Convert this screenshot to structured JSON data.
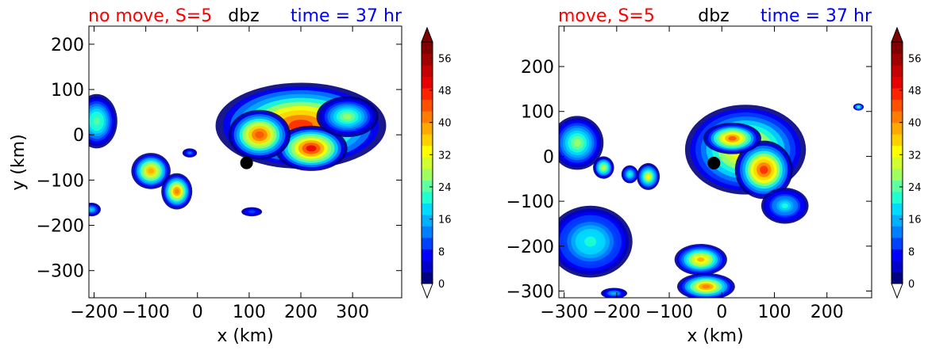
{
  "colors": {
    "title_left": "#ff0000",
    "title_center": "#000000",
    "title_right": "#0000ff",
    "marker": "#000000"
  },
  "colormap": [
    "#00007f",
    "#0000c8",
    "#0000ff",
    "#0040ff",
    "#0080ff",
    "#00b0ff",
    "#00dcff",
    "#20ffd0",
    "#60ffa0",
    "#a0ff60",
    "#d0ff30",
    "#ffff00",
    "#ffd000",
    "#ffa800",
    "#ff7c00",
    "#ff5000",
    "#ff2400",
    "#e80000",
    "#c40000",
    "#a00000",
    "#7f0000"
  ],
  "chart_data": [
    {
      "type": "heatmap",
      "title_left": "no move, S=5",
      "title_center": "dbz",
      "title_right": "time = 37 hr",
      "xlabel": "x (km)",
      "ylabel": "y (km)",
      "xlim": [
        -210,
        395
      ],
      "ylim": [
        -360,
        240
      ],
      "xticks": [
        -200,
        -100,
        0,
        100,
        200,
        300
      ],
      "xticklabels": [
        "−200",
        "−100",
        "0",
        "100",
        "200",
        "300"
      ],
      "yticks": [
        200,
        100,
        0,
        -100,
        -200,
        -300
      ],
      "yticklabels": [
        "200",
        "100",
        "0",
        "−100",
        "−200",
        "−300"
      ],
      "marker": {
        "x": 95,
        "y": -62
      },
      "blobs": [
        {
          "x": 200,
          "y": 20,
          "rx": 165,
          "ry": 95,
          "peak": 52
        },
        {
          "x": 220,
          "y": -30,
          "rx": 70,
          "ry": 50,
          "peak": 55
        },
        {
          "x": 120,
          "y": 0,
          "rx": 60,
          "ry": 55,
          "peak": 50
        },
        {
          "x": 290,
          "y": 40,
          "rx": 60,
          "ry": 45,
          "peak": 30
        },
        {
          "x": -195,
          "y": 30,
          "rx": 40,
          "ry": 60,
          "peak": 28
        },
        {
          "x": -90,
          "y": -80,
          "rx": 38,
          "ry": 40,
          "peak": 44
        },
        {
          "x": -40,
          "y": -125,
          "rx": 30,
          "ry": 40,
          "peak": 46
        },
        {
          "x": -205,
          "y": -165,
          "rx": 18,
          "ry": 15,
          "peak": 20
        },
        {
          "x": 105,
          "y": -170,
          "rx": 20,
          "ry": 10,
          "peak": 12
        },
        {
          "x": -15,
          "y": -40,
          "rx": 14,
          "ry": 10,
          "peak": 14
        }
      ]
    },
    {
      "type": "heatmap",
      "title_left": "move, S=5",
      "title_center": "dbz",
      "title_right": "time = 37 hr",
      "xlabel": "x (km)",
      "ylabel": "",
      "xlim": [
        -310,
        285
      ],
      "ylim": [
        -315,
        290
      ],
      "xticks": [
        -300,
        -200,
        -100,
        0,
        100,
        200
      ],
      "xticklabels": [
        "−300",
        "−200",
        "−100",
        "0",
        "100",
        "200"
      ],
      "yticks": [
        200,
        100,
        0,
        -100,
        -200,
        -300
      ],
      "yticklabels": [
        "200",
        "100",
        "0",
        "−100",
        "−200",
        "−300"
      ],
      "marker": {
        "x": -15,
        "y": -15
      },
      "blobs": [
        {
          "x": 45,
          "y": 15,
          "rx": 115,
          "ry": 100,
          "peak": 42
        },
        {
          "x": 80,
          "y": -30,
          "rx": 55,
          "ry": 65,
          "peak": 52
        },
        {
          "x": 20,
          "y": 40,
          "rx": 55,
          "ry": 35,
          "peak": 48
        },
        {
          "x": 120,
          "y": -110,
          "rx": 45,
          "ry": 40,
          "peak": 22
        },
        {
          "x": -275,
          "y": 30,
          "rx": 50,
          "ry": 60,
          "peak": 30
        },
        {
          "x": -225,
          "y": -25,
          "rx": 20,
          "ry": 25,
          "peak": 34
        },
        {
          "x": -140,
          "y": -45,
          "rx": 22,
          "ry": 30,
          "peak": 36
        },
        {
          "x": -175,
          "y": -40,
          "rx": 16,
          "ry": 20,
          "peak": 24
        },
        {
          "x": -250,
          "y": -190,
          "rx": 80,
          "ry": 80,
          "peak": 24
        },
        {
          "x": -40,
          "y": -230,
          "rx": 50,
          "ry": 35,
          "peak": 42
        },
        {
          "x": -30,
          "y": -290,
          "rx": 55,
          "ry": 30,
          "peak": 46
        },
        {
          "x": -205,
          "y": -305,
          "rx": 25,
          "ry": 12,
          "peak": 18
        },
        {
          "x": 260,
          "y": 110,
          "rx": 10,
          "ry": 8,
          "peak": 26
        }
      ]
    }
  ],
  "colorbars": [
    {
      "ticks": [
        56,
        48,
        40,
        32,
        24,
        16,
        8,
        0
      ],
      "ticklabels": [
        "56",
        "48",
        "40",
        "32",
        "24",
        "16",
        "8",
        "0"
      ],
      "vmin": 0,
      "vmax": 60
    },
    {
      "ticks": [
        56,
        48,
        40,
        32,
        24,
        16,
        8,
        0
      ],
      "ticklabels": [
        "56",
        "48",
        "40",
        "32",
        "24",
        "16",
        "8",
        "0"
      ],
      "vmin": 0,
      "vmax": 60
    }
  ]
}
